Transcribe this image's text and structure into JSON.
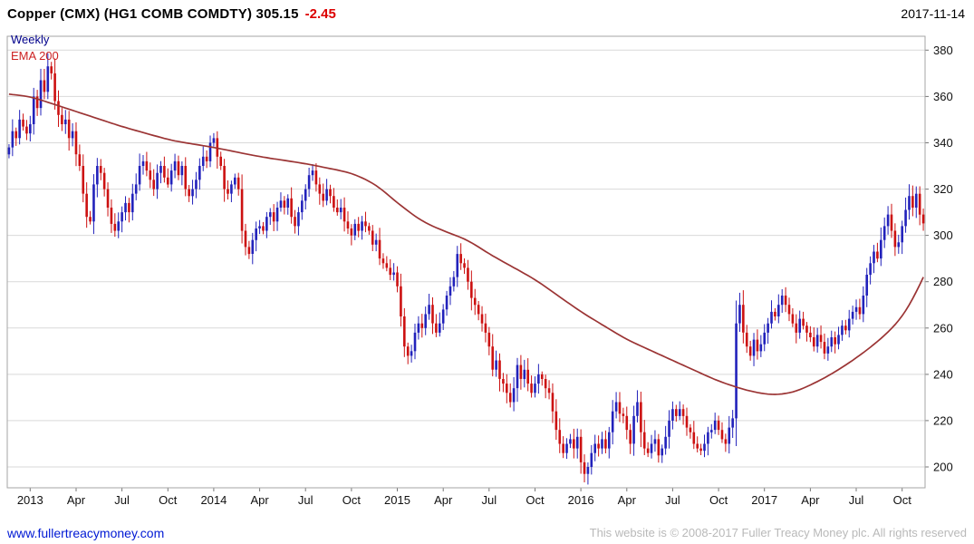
{
  "header": {
    "title": "Copper (CMX) (HG1 COMB COMDTY)",
    "price": "305.15",
    "change": "-2.45",
    "date": "2017-11-14"
  },
  "legend": {
    "timeframe": "Weekly",
    "overlay": "EMA 200"
  },
  "footer": {
    "link": "www.fullertreacymoney.com",
    "copyright": "This website is © 2008-2017 Fuller Treacy Money plc. All rights reserved"
  },
  "chart_data": {
    "type": "candlestick",
    "title": "Copper (CMX) (HG1 COMB COMDTY)",
    "timeframe": "Weekly",
    "overlay": "EMA 200",
    "last_price": 305.15,
    "change": -2.45,
    "ylim": [
      191,
      386
    ],
    "y_ticks": [
      200,
      220,
      240,
      260,
      280,
      300,
      320,
      340,
      360,
      380
    ],
    "x_ticks": [
      {
        "week": 6,
        "label": "2013"
      },
      {
        "week": 19,
        "label": "Apr"
      },
      {
        "week": 32,
        "label": "Jul"
      },
      {
        "week": 45,
        "label": "Oct"
      },
      {
        "week": 58,
        "label": "2014"
      },
      {
        "week": 71,
        "label": "Apr"
      },
      {
        "week": 84,
        "label": "Jul"
      },
      {
        "week": 97,
        "label": "Oct"
      },
      {
        "week": 110,
        "label": "2015"
      },
      {
        "week": 123,
        "label": "Apr"
      },
      {
        "week": 136,
        "label": "Jul"
      },
      {
        "week": 149,
        "label": "Oct"
      },
      {
        "week": 162,
        "label": "2016"
      },
      {
        "week": 175,
        "label": "Apr"
      },
      {
        "week": 188,
        "label": "Jul"
      },
      {
        "week": 201,
        "label": "Oct"
      },
      {
        "week": 214,
        "label": "2017"
      },
      {
        "week": 227,
        "label": "Apr"
      },
      {
        "week": 240,
        "label": "Jul"
      },
      {
        "week": 253,
        "label": "Oct"
      }
    ],
    "first_open": 335,
    "closes": [
      338,
      345,
      342,
      350,
      347,
      344,
      348,
      360,
      355,
      367,
      362,
      373,
      370,
      358,
      352,
      348,
      350,
      342,
      345,
      335,
      330,
      318,
      308,
      306,
      322,
      330,
      327,
      320,
      312,
      305,
      302,
      306,
      310,
      314,
      310,
      318,
      322,
      330,
      332,
      328,
      324,
      320,
      327,
      330,
      325,
      322,
      328,
      332,
      326,
      330,
      320,
      317,
      320,
      324,
      330,
      334,
      332,
      340,
      342,
      334,
      330,
      320,
      318,
      322,
      325,
      320,
      302,
      295,
      292,
      298,
      303,
      304,
      302,
      308,
      310,
      306,
      312,
      315,
      312,
      316,
      308,
      304,
      310,
      315,
      320,
      326,
      328,
      322,
      318,
      315,
      320,
      317,
      312,
      310,
      312,
      306,
      303,
      300,
      305,
      302,
      306,
      304,
      302,
      296,
      298,
      290,
      288,
      286,
      283,
      284,
      278,
      265,
      252,
      248,
      250,
      258,
      262,
      260,
      266,
      270,
      262,
      258,
      262,
      268,
      274,
      278,
      282,
      292,
      288,
      286,
      280,
      273,
      270,
      266,
      262,
      258,
      252,
      242,
      246,
      238,
      236,
      232,
      228,
      234,
      244,
      238,
      242,
      236,
      232,
      236,
      240,
      238,
      234,
      232,
      224,
      216,
      210,
      206,
      210,
      212,
      208,
      213,
      202,
      197,
      200,
      206,
      210,
      208,
      212,
      208,
      215,
      224,
      228,
      223,
      222,
      216,
      210,
      222,
      228,
      215,
      208,
      206,
      210,
      212,
      205,
      208,
      213,
      220,
      225,
      222,
      225,
      222,
      217,
      215,
      210,
      208,
      207,
      210,
      215,
      216,
      220,
      216,
      212,
      210,
      217,
      221,
      262,
      270,
      258,
      252,
      248,
      255,
      250,
      253,
      258,
      262,
      267,
      265,
      270,
      274,
      270,
      266,
      262,
      258,
      264,
      261,
      258,
      256,
      252,
      257,
      254,
      249,
      252,
      256,
      253,
      257,
      261,
      259,
      264,
      267,
      269,
      266,
      274,
      283,
      288,
      293,
      290,
      298,
      304,
      309,
      302,
      295,
      297,
      304,
      311,
      317,
      312,
      318,
      309,
      305.15
    ],
    "ema_anchors": [
      [
        0,
        361
      ],
      [
        6,
        360
      ],
      [
        18,
        354
      ],
      [
        32,
        347
      ],
      [
        46,
        341
      ],
      [
        58,
        338
      ],
      [
        71,
        334
      ],
      [
        84,
        331
      ],
      [
        97,
        327
      ],
      [
        104,
        322
      ],
      [
        110,
        314
      ],
      [
        117,
        306
      ],
      [
        123,
        302
      ],
      [
        130,
        298
      ],
      [
        136,
        292
      ],
      [
        149,
        281
      ],
      [
        162,
        267
      ],
      [
        175,
        255
      ],
      [
        188,
        246
      ],
      [
        201,
        237
      ],
      [
        209,
        233
      ],
      [
        216,
        231
      ],
      [
        222,
        232
      ],
      [
        228,
        236
      ],
      [
        234,
        241
      ],
      [
        240,
        247
      ],
      [
        246,
        254
      ],
      [
        251,
        261
      ],
      [
        255,
        269
      ],
      [
        259,
        282
      ]
    ],
    "colors": {
      "up": "#2222bb",
      "down": "#cc1111",
      "ema": "#9b3434",
      "grid": "#d9d9d9",
      "frame": "#a6a6a6"
    }
  }
}
